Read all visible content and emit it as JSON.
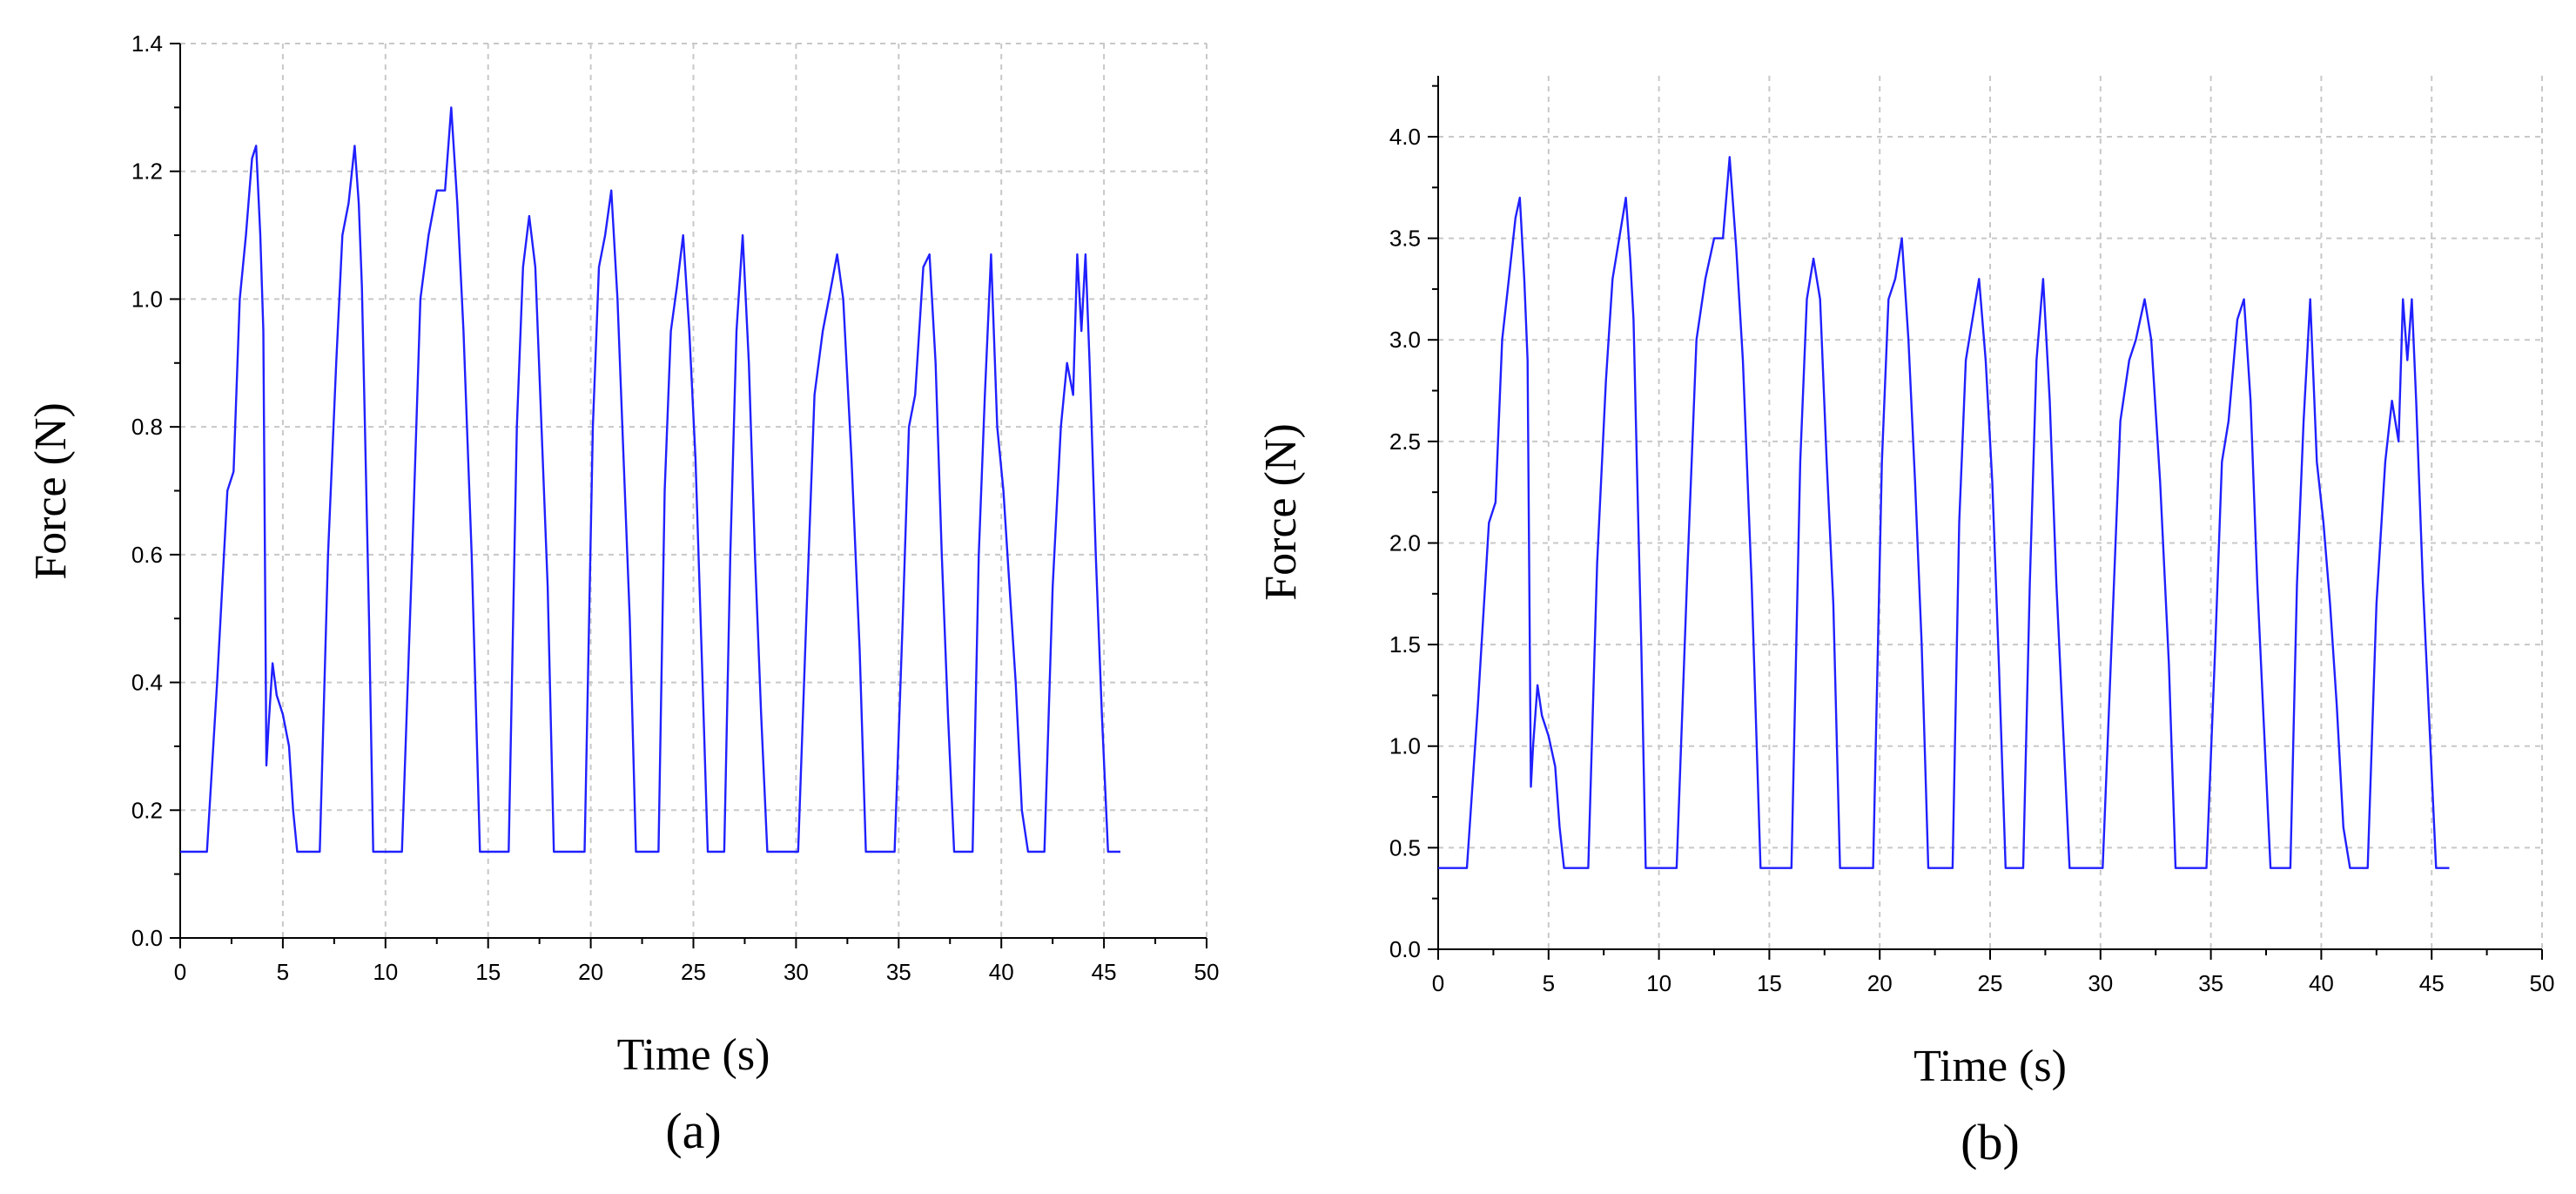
{
  "figure": {
    "panels": [
      "(a)",
      "(b)"
    ]
  },
  "colors": {
    "line": "#2020ff",
    "grid": "#c8c8c8",
    "axis": "#000000"
  },
  "chart_data": [
    {
      "type": "line",
      "panel_label": "(a)",
      "title": "",
      "xlabel": "Time (s)",
      "ylabel": "Force (N)",
      "xlim": [
        0,
        50
      ],
      "ylim": [
        0,
        1.4
      ],
      "xticks": [
        "0",
        "5",
        "10",
        "15",
        "20",
        "25",
        "30",
        "35",
        "40",
        "45",
        "50"
      ],
      "yticks": [
        "0.0",
        "0.2",
        "0.4",
        "0.6",
        "0.8",
        "1.0",
        "1.2",
        "1.4"
      ],
      "grid": true,
      "series": [
        {
          "x": [
            0.0,
            1.3,
            1.8,
            2.3,
            2.6,
            2.9,
            3.2,
            3.5,
            3.7,
            3.9,
            4.05,
            4.2,
            4.3,
            4.5,
            4.7,
            5.0,
            5.3,
            5.5,
            5.7,
            6.8,
            7.2,
            7.6,
            7.9,
            8.2,
            8.5,
            8.7,
            8.85,
            9.0,
            9.2,
            9.4,
            9.8,
            10.8,
            11.3,
            11.7,
            12.1,
            12.5,
            12.9,
            13.2,
            13.5,
            13.8,
            14.2,
            14.6,
            15.0,
            16.0,
            16.4,
            16.7,
            17.0,
            17.3,
            17.6,
            17.9,
            18.2,
            18.5,
            19.7,
            20.1,
            20.4,
            20.7,
            21.0,
            21.3,
            21.6,
            21.9,
            22.2,
            23.3,
            23.6,
            23.9,
            24.2,
            24.5,
            24.8,
            25.1,
            25.4,
            25.7,
            26.5,
            26.8,
            27.1,
            27.4,
            27.7,
            28.0,
            28.3,
            28.6,
            28.9,
            30.1,
            30.5,
            30.9,
            31.3,
            31.6,
            32.0,
            32.3,
            32.7,
            33.1,
            33.4,
            34.8,
            35.2,
            35.5,
            35.8,
            36.2,
            36.5,
            36.8,
            37.1,
            37.4,
            37.7,
            38.6,
            38.9,
            39.2,
            39.5,
            39.8,
            40.1,
            40.4,
            40.7,
            41.0,
            41.3,
            42.1,
            42.5,
            42.9,
            43.2,
            43.5,
            43.7,
            43.9,
            44.1,
            44.3,
            44.6,
            44.9,
            45.2,
            45.8
          ],
          "y": [
            0.135,
            0.135,
            0.4,
            0.7,
            0.73,
            1.0,
            1.1,
            1.22,
            1.24,
            1.1,
            0.95,
            0.27,
            0.33,
            0.43,
            0.38,
            0.35,
            0.3,
            0.2,
            0.135,
            0.135,
            0.6,
            0.9,
            1.1,
            1.15,
            1.24,
            1.15,
            1.02,
            0.8,
            0.5,
            0.135,
            0.135,
            0.135,
            0.6,
            1.0,
            1.1,
            1.17,
            1.17,
            1.3,
            1.15,
            0.95,
            0.6,
            0.135,
            0.135,
            0.135,
            0.8,
            1.05,
            1.13,
            1.05,
            0.8,
            0.55,
            0.135,
            0.135,
            0.135,
            0.8,
            1.05,
            1.1,
            1.17,
            1.0,
            0.75,
            0.5,
            0.135,
            0.135,
            0.7,
            0.95,
            1.02,
            1.1,
            0.95,
            0.75,
            0.45,
            0.135,
            0.135,
            0.6,
            0.95,
            1.1,
            0.9,
            0.6,
            0.35,
            0.135,
            0.135,
            0.135,
            0.5,
            0.85,
            0.95,
            1.0,
            1.07,
            1.0,
            0.75,
            0.45,
            0.135,
            0.135,
            0.5,
            0.8,
            0.85,
            1.05,
            1.07,
            0.9,
            0.6,
            0.35,
            0.135,
            0.135,
            0.6,
            0.85,
            1.07,
            0.8,
            0.7,
            0.55,
            0.4,
            0.2,
            0.135,
            0.135,
            0.55,
            0.8,
            0.9,
            0.85,
            1.07,
            0.95,
            1.07,
            0.9,
            0.6,
            0.35,
            0.135,
            0.135
          ]
        }
      ]
    },
    {
      "type": "line",
      "panel_label": "(b)",
      "title": "",
      "xlabel": "Time (s)",
      "ylabel": "Force (N)",
      "xlim": [
        0,
        50
      ],
      "ylim": [
        0,
        4.3
      ],
      "xticks": [
        "0",
        "5",
        "10",
        "15",
        "20",
        "25",
        "30",
        "35",
        "40",
        "45",
        "50"
      ],
      "yticks": [
        "0.0",
        "0.5",
        "1.0",
        "1.5",
        "2.0",
        "2.5",
        "3.0",
        "3.5",
        "4.0"
      ],
      "grid": true,
      "series": [
        {
          "x": [
            0.0,
            1.3,
            1.8,
            2.3,
            2.6,
            2.9,
            3.2,
            3.5,
            3.7,
            3.9,
            4.05,
            4.2,
            4.3,
            4.5,
            4.7,
            5.0,
            5.3,
            5.5,
            5.7,
            6.8,
            7.2,
            7.6,
            7.9,
            8.2,
            8.5,
            8.7,
            8.85,
            9.0,
            9.2,
            9.4,
            9.8,
            10.8,
            11.3,
            11.7,
            12.1,
            12.5,
            12.9,
            13.2,
            13.5,
            13.8,
            14.2,
            14.6,
            15.0,
            16.0,
            16.4,
            16.7,
            17.0,
            17.3,
            17.6,
            17.9,
            18.2,
            18.5,
            19.7,
            20.1,
            20.4,
            20.7,
            21.0,
            21.3,
            21.6,
            21.9,
            22.2,
            23.3,
            23.6,
            23.9,
            24.2,
            24.5,
            24.8,
            25.1,
            25.4,
            25.7,
            26.5,
            26.8,
            27.1,
            27.4,
            27.7,
            28.0,
            28.3,
            28.6,
            28.9,
            30.1,
            30.5,
            30.9,
            31.3,
            31.6,
            32.0,
            32.3,
            32.7,
            33.1,
            33.4,
            34.8,
            35.2,
            35.5,
            35.8,
            36.2,
            36.5,
            36.8,
            37.1,
            37.4,
            37.7,
            38.6,
            38.9,
            39.2,
            39.5,
            39.8,
            40.1,
            40.4,
            40.7,
            41.0,
            41.3,
            42.1,
            42.5,
            42.9,
            43.2,
            43.5,
            43.7,
            43.9,
            44.1,
            44.3,
            44.6,
            44.9,
            45.2,
            45.8
          ],
          "y": [
            0.4,
            0.4,
            1.2,
            2.1,
            2.2,
            3.0,
            3.3,
            3.6,
            3.7,
            3.3,
            2.9,
            0.8,
            1.0,
            1.3,
            1.15,
            1.05,
            0.9,
            0.6,
            0.4,
            0.4,
            1.9,
            2.8,
            3.3,
            3.5,
            3.7,
            3.4,
            3.1,
            2.4,
            1.5,
            0.4,
            0.4,
            0.4,
            1.9,
            3.0,
            3.3,
            3.5,
            3.5,
            3.9,
            3.45,
            2.9,
            1.8,
            0.4,
            0.4,
            0.4,
            2.4,
            3.2,
            3.4,
            3.2,
            2.4,
            1.7,
            0.4,
            0.4,
            0.4,
            2.4,
            3.2,
            3.3,
            3.5,
            3.0,
            2.3,
            1.5,
            0.4,
            0.4,
            2.1,
            2.9,
            3.1,
            3.3,
            2.9,
            2.3,
            1.4,
            0.4,
            0.4,
            1.8,
            2.9,
            3.3,
            2.7,
            1.8,
            1.1,
            0.4,
            0.4,
            0.4,
            1.5,
            2.6,
            2.9,
            3.0,
            3.2,
            3.0,
            2.3,
            1.4,
            0.4,
            0.4,
            1.5,
            2.4,
            2.6,
            3.1,
            3.2,
            2.7,
            1.8,
            1.1,
            0.4,
            0.4,
            1.8,
            2.6,
            3.2,
            2.4,
            2.1,
            1.7,
            1.2,
            0.6,
            0.4,
            0.4,
            1.7,
            2.4,
            2.7,
            2.5,
            3.2,
            2.9,
            3.2,
            2.7,
            1.8,
            1.1,
            0.4,
            0.4
          ]
        }
      ]
    }
  ]
}
